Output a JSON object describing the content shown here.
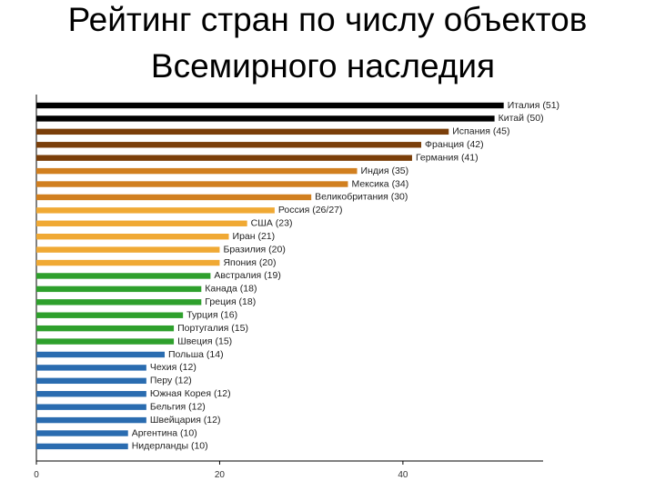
{
  "chart_data": {
    "type": "barh",
    "title": [
      "Рейтинг стран по числу объектов",
      "Всемирного наследия"
    ],
    "categories": [
      "Италия (51)",
      "Китай (50)",
      "Испания (45)",
      "Франция (42)",
      "Германия (41)",
      "Индия (35)",
      "Мексика (34)",
      "Великобритания (30)",
      "Россия (26/27)",
      "США (23)",
      "Иран (21)",
      "Бразилия (20)",
      "Япония (20)",
      "Австралия (19)",
      "Канада (18)",
      "Греция (18)",
      "Турция (16)",
      "Португалия (15)",
      "Швеция (15)",
      "Польша (14)",
      "Чехия (12)",
      "Перу (12)",
      "Южная Корея (12)",
      "Бельгия (12)",
      "Швейцария (12)",
      "Аргентина (10)",
      "Нидерланды (10)"
    ],
    "values": [
      51,
      50,
      45,
      42,
      41,
      35,
      34,
      30,
      26,
      23,
      21,
      20,
      20,
      19,
      18,
      18,
      16,
      15,
      15,
      14,
      12,
      12,
      12,
      12,
      12,
      10,
      10
    ],
    "colors": [
      "#000000",
      "#000000",
      "#7b3f0a",
      "#7b3f0a",
      "#7b3f0a",
      "#d17f1f",
      "#d17f1f",
      "#d17f1f",
      "#f0a934",
      "#f0a934",
      "#f0a934",
      "#f0a934",
      "#f0a934",
      "#2ea02c",
      "#2ea02c",
      "#2ea02c",
      "#2ea02c",
      "#2ea02c",
      "#2ea02c",
      "#2a6cb0",
      "#2a6cb0",
      "#2a6cb0",
      "#2a6cb0",
      "#2a6cb0",
      "#2a6cb0",
      "#2a6cb0",
      "#2a6cb0"
    ],
    "xlim": [
      0,
      55.3
    ],
    "xticks": [
      0,
      20,
      40
    ]
  }
}
